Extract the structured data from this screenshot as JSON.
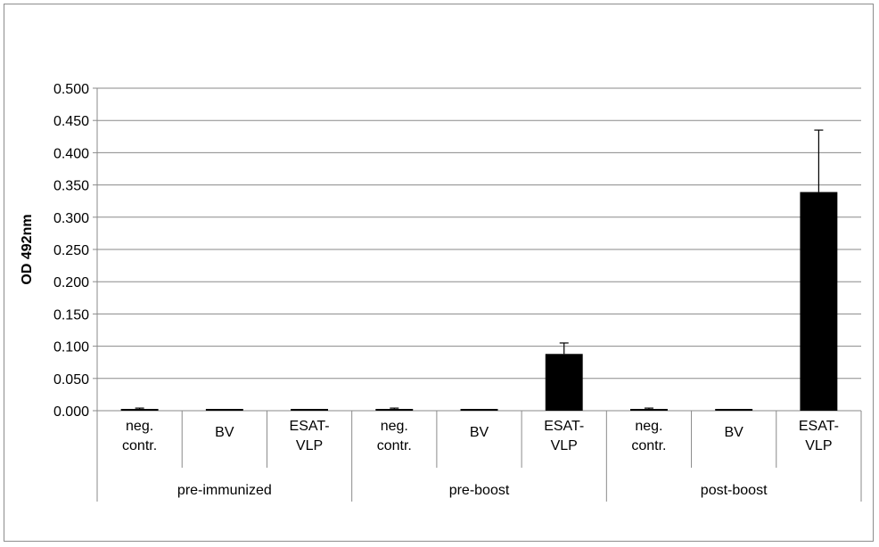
{
  "chart_data": {
    "type": "bar",
    "title": "",
    "xlabel": "",
    "ylabel": "OD 492nm",
    "ylim": [
      0,
      0.5
    ],
    "y_ticks": [
      "0.000",
      "0.050",
      "0.100",
      "0.150",
      "0.200",
      "0.250",
      "0.300",
      "0.350",
      "0.400",
      "0.450",
      "0.500"
    ],
    "grid": true,
    "legend": "none",
    "bar_color": "#000000",
    "groups": [
      {
        "name": "pre-immunized",
        "categories": [
          {
            "label": [
              "neg.",
              "contr."
            ],
            "value": 0.002,
            "error": 0.002
          },
          {
            "label": [
              "BV"
            ],
            "value": 0.001,
            "error": 0.0
          },
          {
            "label": [
              "ESAT-",
              "VLP"
            ],
            "value": 0.001,
            "error": 0.0
          }
        ]
      },
      {
        "name": "pre-boost",
        "categories": [
          {
            "label": [
              "neg.",
              "contr."
            ],
            "value": 0.002,
            "error": 0.002
          },
          {
            "label": [
              "BV"
            ],
            "value": 0.001,
            "error": 0.0
          },
          {
            "label": [
              "ESAT-",
              "VLP"
            ],
            "value": 0.088,
            "error": 0.017
          }
        ]
      },
      {
        "name": "post-boost",
        "categories": [
          {
            "label": [
              "neg.",
              "contr."
            ],
            "value": 0.002,
            "error": 0.002
          },
          {
            "label": [
              "BV"
            ],
            "value": 0.001,
            "error": 0.0
          },
          {
            "label": [
              "ESAT-",
              "VLP"
            ],
            "value": 0.339,
            "error": 0.096
          }
        ]
      }
    ]
  }
}
